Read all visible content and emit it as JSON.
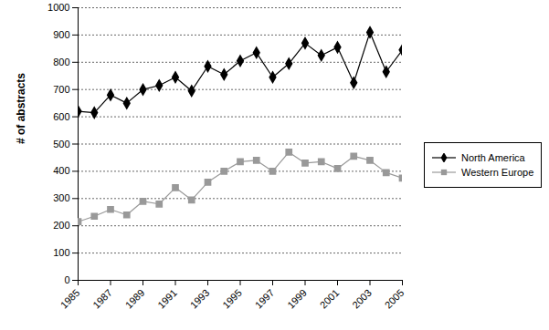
{
  "chart_data": {
    "type": "line",
    "y_label": "# of abstracts",
    "x": [
      1985,
      1986,
      1987,
      1988,
      1989,
      1990,
      1991,
      1992,
      1993,
      1994,
      1995,
      1996,
      1997,
      1998,
      1999,
      2000,
      2001,
      2002,
      2003,
      2004,
      2005
    ],
    "series": [
      {
        "name": "North America",
        "color": "#000000",
        "marker": "diamond",
        "values": [
          620,
          615,
          680,
          650,
          700,
          715,
          745,
          695,
          785,
          755,
          805,
          835,
          745,
          795,
          870,
          825,
          855,
          725,
          910,
          765,
          845
        ]
      },
      {
        "name": "Western Europe",
        "color": "#999999",
        "marker": "square",
        "values": [
          215,
          235,
          260,
          240,
          290,
          280,
          340,
          295,
          360,
          400,
          435,
          440,
          400,
          470,
          430,
          435,
          410,
          455,
          440,
          395,
          375
        ]
      }
    ],
    "xlim": [
      1985,
      2005
    ],
    "xticks": [
      1985,
      1987,
      1989,
      1991,
      1993,
      1995,
      1997,
      1999,
      2001,
      2003,
      2005
    ],
    "ylim": [
      0,
      1000
    ],
    "yticks": [
      0,
      100,
      200,
      300,
      400,
      500,
      600,
      700,
      800,
      900,
      1000
    ],
    "grid": true,
    "legend": "right"
  }
}
